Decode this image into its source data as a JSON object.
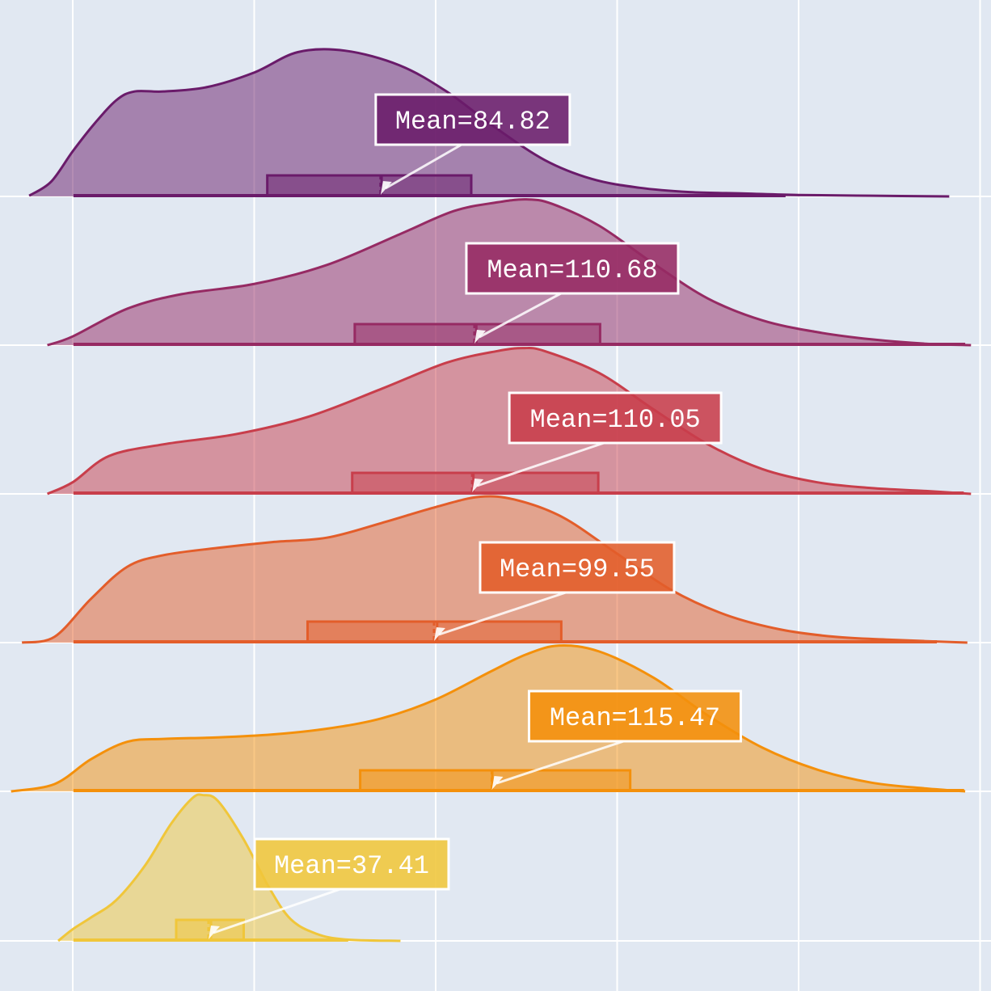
{
  "chart_data": {
    "type": "ridgeline",
    "title": "",
    "xlabel": "",
    "ylabel": "",
    "xlim": [
      -4,
      246
    ],
    "grid": true,
    "legend": "none",
    "background_color": "#e1e8f2",
    "grid_color": "#ffffff",
    "ridge_peak_scale": 0.98,
    "series": [
      {
        "color": "#6a1b6a",
        "mean": 84.82,
        "mean_label": "Mean=84.82",
        "box": {
          "q1": 53.6,
          "median": 85.1,
          "q3": 109.8
        },
        "whisker_range": [
          0.2,
          196.4
        ],
        "density_range": [
          -12,
          241.5
        ],
        "density": [
          [
            -12,
            0.005
          ],
          [
            -6,
            0.1
          ],
          [
            0,
            0.31
          ],
          [
            6,
            0.5
          ],
          [
            12,
            0.66
          ],
          [
            17,
            0.72
          ],
          [
            25,
            0.72
          ],
          [
            37,
            0.75
          ],
          [
            50,
            0.85
          ],
          [
            62,
            0.99
          ],
          [
            75,
            1.0
          ],
          [
            90,
            0.9
          ],
          [
            103,
            0.72
          ],
          [
            116,
            0.48
          ],
          [
            130,
            0.25
          ],
          [
            143,
            0.12
          ],
          [
            156,
            0.06
          ],
          [
            170,
            0.03
          ],
          [
            185,
            0.02
          ],
          [
            200,
            0.01
          ],
          [
            220,
            0.005
          ],
          [
            241.5,
            0.0
          ]
        ]
      },
      {
        "color": "#962a63",
        "mean": 110.68,
        "mean_label": "Mean=110.68",
        "box": {
          "q1": 77.7,
          "median": 111.2,
          "q3": 145.3
        },
        "whisker_range": [
          0.2,
          245.9
        ],
        "density_range": [
          -7,
          247.5
        ],
        "density": [
          [
            -7,
            0.0
          ],
          [
            0,
            0.06
          ],
          [
            15,
            0.25
          ],
          [
            30,
            0.35
          ],
          [
            50,
            0.42
          ],
          [
            70,
            0.55
          ],
          [
            90,
            0.76
          ],
          [
            105,
            0.92
          ],
          [
            117,
            0.98
          ],
          [
            125,
            1.0
          ],
          [
            132,
            0.97
          ],
          [
            145,
            0.82
          ],
          [
            160,
            0.56
          ],
          [
            175,
            0.32
          ],
          [
            190,
            0.17
          ],
          [
            205,
            0.09
          ],
          [
            220,
            0.04
          ],
          [
            235,
            0.01
          ],
          [
            247.5,
            0.0
          ]
        ]
      },
      {
        "color": "#c83e4b",
        "mean": 110.05,
        "mean_label": "Mean=110.05",
        "box": {
          "q1": 77.0,
          "median": 110.4,
          "q3": 144.8
        },
        "whisker_range": [
          0.2,
          245.5
        ],
        "density_range": [
          -7,
          247.5
        ],
        "density": [
          [
            -7,
            0.0
          ],
          [
            0,
            0.08
          ],
          [
            10,
            0.26
          ],
          [
            25,
            0.34
          ],
          [
            45,
            0.41
          ],
          [
            65,
            0.53
          ],
          [
            85,
            0.72
          ],
          [
            103,
            0.9
          ],
          [
            117,
            0.98
          ],
          [
            124,
            1.0
          ],
          [
            130,
            0.98
          ],
          [
            145,
            0.83
          ],
          [
            160,
            0.58
          ],
          [
            175,
            0.34
          ],
          [
            190,
            0.17
          ],
          [
            205,
            0.08
          ],
          [
            220,
            0.04
          ],
          [
            235,
            0.02
          ],
          [
            247.5,
            0.0
          ]
        ]
      },
      {
        "color": "#e35d2a",
        "mean": 99.55,
        "mean_label": "Mean=99.55",
        "box": {
          "q1": 64.7,
          "median": 100.4,
          "q3": 134.6
        },
        "whisker_range": [
          0.2,
          238.1
        ],
        "density_range": [
          -14,
          246.5
        ],
        "density": [
          [
            -14,
            0.0
          ],
          [
            -5,
            0.04
          ],
          [
            5,
            0.3
          ],
          [
            15,
            0.52
          ],
          [
            25,
            0.6
          ],
          [
            40,
            0.65
          ],
          [
            55,
            0.69
          ],
          [
            70,
            0.72
          ],
          [
            85,
            0.82
          ],
          [
            100,
            0.93
          ],
          [
            112,
            1.0
          ],
          [
            122,
            0.98
          ],
          [
            135,
            0.86
          ],
          [
            150,
            0.61
          ],
          [
            165,
            0.36
          ],
          [
            180,
            0.19
          ],
          [
            195,
            0.09
          ],
          [
            210,
            0.04
          ],
          [
            225,
            0.02
          ],
          [
            246.5,
            0.0
          ]
        ]
      },
      {
        "color": "#f4900b",
        "mean": 115.47,
        "mean_label": "Mean=115.47",
        "box": {
          "q1": 79.2,
          "median": 115.6,
          "q3": 153.6
        },
        "whisker_range": [
          0.2,
          245.6
        ],
        "density_range": [
          -17,
          245.9
        ],
        "density": [
          [
            -17,
            0.0
          ],
          [
            -5,
            0.05
          ],
          [
            5,
            0.22
          ],
          [
            15,
            0.34
          ],
          [
            25,
            0.36
          ],
          [
            40,
            0.37
          ],
          [
            55,
            0.39
          ],
          [
            70,
            0.43
          ],
          [
            85,
            0.5
          ],
          [
            100,
            0.63
          ],
          [
            115,
            0.82
          ],
          [
            125,
            0.94
          ],
          [
            134,
            1.0
          ],
          [
            145,
            0.96
          ],
          [
            160,
            0.78
          ],
          [
            175,
            0.52
          ],
          [
            190,
            0.3
          ],
          [
            205,
            0.15
          ],
          [
            220,
            0.06
          ],
          [
            235,
            0.02
          ],
          [
            245.9,
            0.0
          ]
        ]
      },
      {
        "color": "#f0c63a",
        "mean": 37.41,
        "mean_label": "Mean=37.41",
        "box": {
          "q1": 28.5,
          "median": 38.1,
          "q3": 47.1
        },
        "whisker_range": [
          0.2,
          75.9
        ],
        "density_range": [
          -4,
          90.3
        ],
        "density": [
          [
            -4,
            0.0
          ],
          [
            0,
            0.08
          ],
          [
            5,
            0.16
          ],
          [
            12,
            0.28
          ],
          [
            20,
            0.52
          ],
          [
            27,
            0.8
          ],
          [
            33,
            0.98
          ],
          [
            36,
            1.0
          ],
          [
            40,
            0.96
          ],
          [
            47,
            0.7
          ],
          [
            54,
            0.37
          ],
          [
            60,
            0.15
          ],
          [
            67,
            0.05
          ],
          [
            75,
            0.01
          ],
          [
            90.3,
            0.0
          ]
        ]
      }
    ]
  }
}
